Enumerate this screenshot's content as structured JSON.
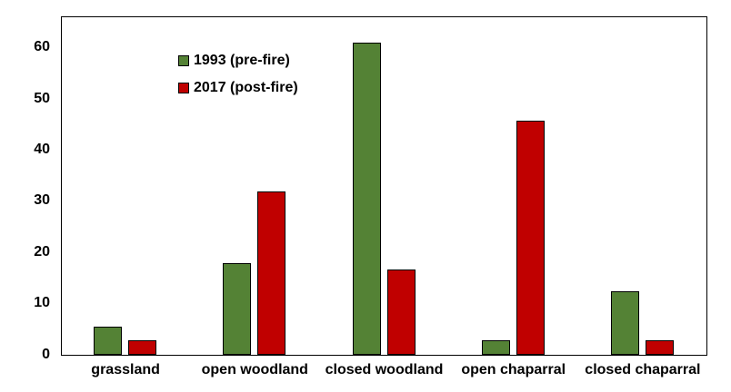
{
  "chart_data": {
    "type": "bar",
    "title": "",
    "xlabel": "",
    "ylabel": "",
    "categories": [
      "grassland",
      "open woodland",
      "closed woodland",
      "open chaparral",
      "closed chaparral"
    ],
    "series": [
      {
        "name": "1993 (pre-fire)",
        "color": "#548235",
        "values": [
          5.5,
          18,
          61,
          2.8,
          12.5
        ]
      },
      {
        "name": "2017 (post-fire)",
        "color": "#C00000",
        "values": [
          2.8,
          32,
          16.6,
          45.8,
          2.8
        ]
      }
    ],
    "yticks": [
      0,
      10,
      20,
      30,
      40,
      50,
      60
    ],
    "ylim": [
      0,
      65.8
    ],
    "grid": false,
    "legend_position": "top-left-inside",
    "bar_border_color": "#000000",
    "axis_color": "#000000",
    "background": "#FFFFFF"
  }
}
